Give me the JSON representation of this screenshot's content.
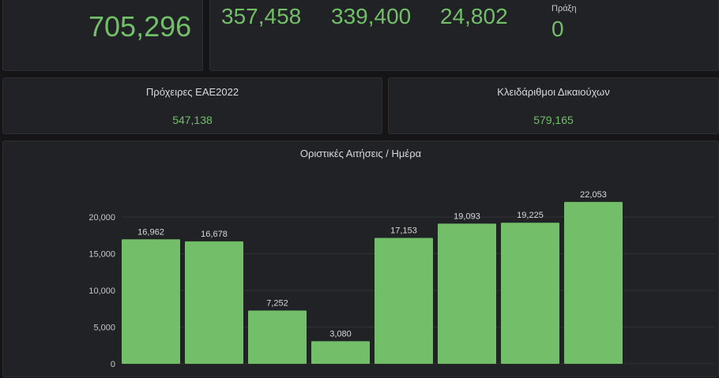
{
  "top": {
    "total_value": "705,296",
    "stats": [
      {
        "value": "357,458"
      },
      {
        "value": "339,400"
      },
      {
        "value": "24,802"
      }
    ],
    "praxi_label": "Πράξη",
    "praxi_value": "0"
  },
  "cards": [
    {
      "title": "Πρόχειρες ΕΑΕ2022",
      "value": "547,138"
    },
    {
      "title": "Κλειδάριθμοι Δικαιούχων",
      "value": "579,165"
    }
  ],
  "colors": {
    "accent": "#73bf69",
    "bar": "#73bf69",
    "panel": "#202226",
    "background": "#151517"
  },
  "chart_data": {
    "type": "bar",
    "title": "Οριστικές Αιτήσεις / Ημέρα",
    "categories": [
      "",
      "",
      "",
      "",
      "",
      "",
      "",
      ""
    ],
    "values": [
      16962,
      16678,
      7252,
      3080,
      17153,
      19093,
      19225,
      22053
    ],
    "value_labels": [
      "16,962",
      "16,678",
      "7,252",
      "3,080",
      "17,153",
      "19,093",
      "19,225",
      "22,053"
    ],
    "y_ticks": [
      "20,000",
      "15,000",
      "10,000",
      "5,000",
      "0"
    ],
    "y_tick_values": [
      20000,
      15000,
      10000,
      5000,
      0
    ],
    "ylim": [
      0,
      25000
    ],
    "grid": true
  }
}
